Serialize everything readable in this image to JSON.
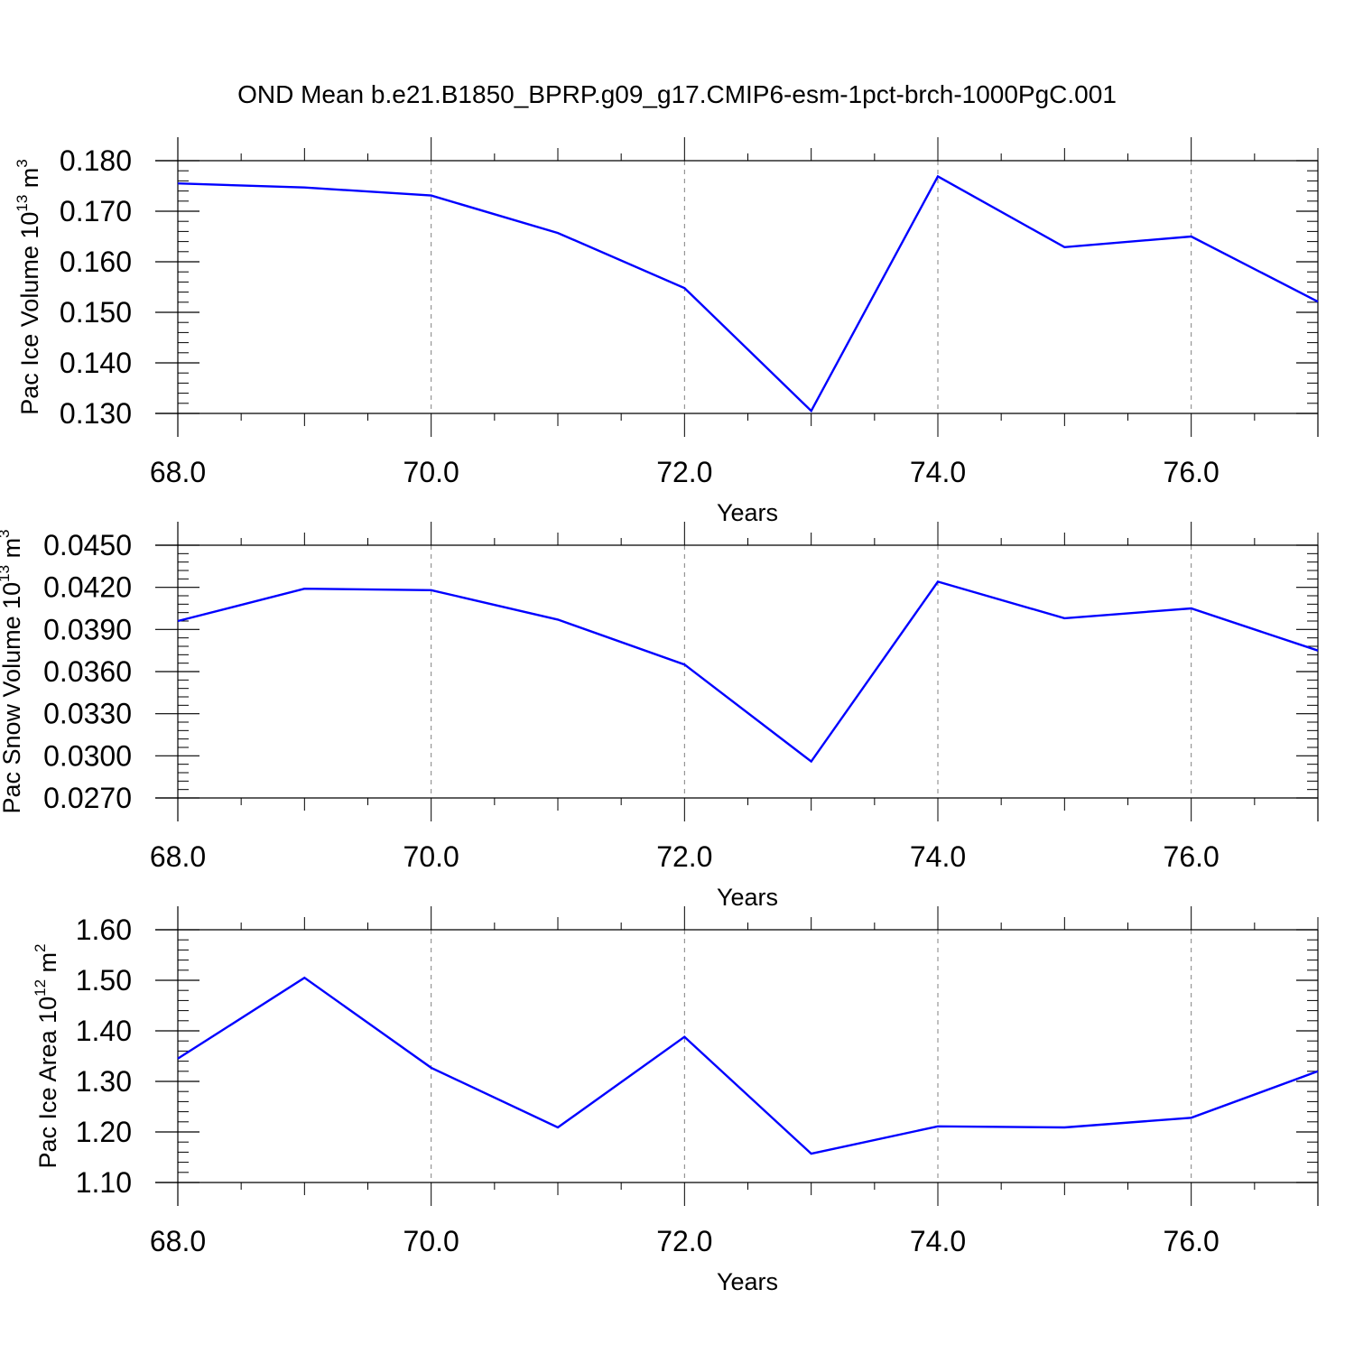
{
  "title": "OND Mean b.e21.B1850_BPRP.g09_g17.CMIP6-esm-1pct-brch-1000PgC.001",
  "colors": {
    "line": "#0000ff",
    "axis": "#000000",
    "grid": "#808080"
  },
  "chart_data": [
    {
      "type": "line",
      "xlabel": "Years",
      "ylabel": {
        "text": "Pac Ice Volume 10",
        "sup": "13",
        "unit": " m",
        "unit_sup": "3"
      },
      "xlim": [
        68,
        77
      ],
      "ylim": [
        0.13,
        0.18
      ],
      "xticks": [
        "68.0",
        "70.0",
        "72.0",
        "74.0",
        "76.0"
      ],
      "xtick_values": [
        68,
        70,
        72,
        74,
        76
      ],
      "yticks": [
        "0.130",
        "0.140",
        "0.150",
        "0.160",
        "0.170",
        "0.180"
      ],
      "ytick_values": [
        0.13,
        0.14,
        0.15,
        0.16,
        0.17,
        0.18
      ],
      "grid": "vertical dashed at major x ticks",
      "x": [
        68,
        69,
        70,
        71,
        72,
        73,
        74,
        75,
        76,
        77
      ],
      "y": [
        0.1755,
        0.1747,
        0.1731,
        0.1657,
        0.1548,
        0.1305,
        0.1769,
        0.1629,
        0.165,
        0.1521
      ]
    },
    {
      "type": "line",
      "xlabel": "Years",
      "ylabel": {
        "text": "Pac Snow Volume 10",
        "sup": "13",
        "unit": " m",
        "unit_sup": "3"
      },
      "xlim": [
        68,
        77
      ],
      "ylim": [
        0.027,
        0.045
      ],
      "xticks": [
        "68.0",
        "70.0",
        "72.0",
        "74.0",
        "76.0"
      ],
      "xtick_values": [
        68,
        70,
        72,
        74,
        76
      ],
      "yticks": [
        "0.0270",
        "0.0300",
        "0.0330",
        "0.0360",
        "0.0390",
        "0.0420",
        "0.0450"
      ],
      "ytick_values": [
        0.027,
        0.03,
        0.033,
        0.036,
        0.039,
        0.042,
        0.045
      ],
      "grid": "vertical dashed at major x ticks",
      "x": [
        68,
        69,
        70,
        71,
        72,
        73,
        74,
        75,
        76,
        77
      ],
      "y": [
        0.0396,
        0.0419,
        0.0418,
        0.0397,
        0.0365,
        0.0296,
        0.0424,
        0.0398,
        0.0405,
        0.0375
      ]
    },
    {
      "type": "line",
      "xlabel": "Years",
      "ylabel": {
        "text": "Pac Ice Area 10",
        "sup": "12",
        "unit": " m",
        "unit_sup": "2"
      },
      "xlim": [
        68,
        77
      ],
      "ylim": [
        1.1,
        1.6
      ],
      "xticks": [
        "68.0",
        "70.0",
        "72.0",
        "74.0",
        "76.0"
      ],
      "xtick_values": [
        68,
        70,
        72,
        74,
        76
      ],
      "yticks": [
        "1.10",
        "1.20",
        "1.30",
        "1.40",
        "1.50",
        "1.60"
      ],
      "ytick_values": [
        1.1,
        1.2,
        1.3,
        1.4,
        1.5,
        1.6
      ],
      "grid": "vertical dashed at major x ticks",
      "x": [
        68,
        69,
        70,
        71,
        72,
        73,
        74,
        75,
        76,
        77
      ],
      "y": [
        1.345,
        1.505,
        1.327,
        1.209,
        1.388,
        1.157,
        1.211,
        1.209,
        1.228,
        1.32
      ]
    }
  ]
}
